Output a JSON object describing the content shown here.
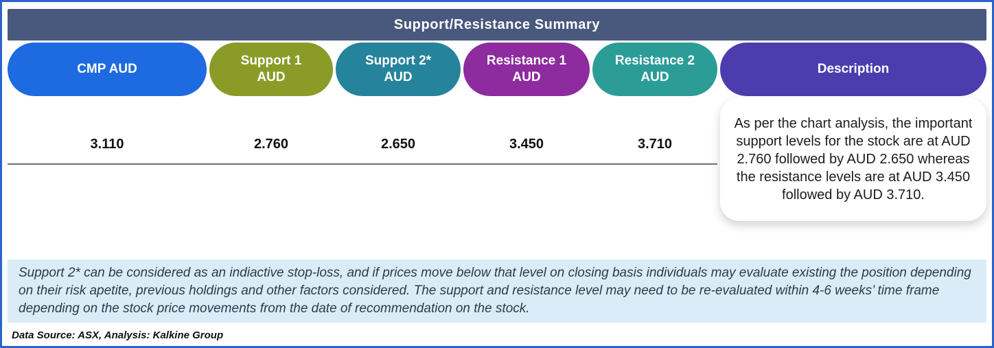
{
  "title": "Support/Resistance Summary",
  "columns": [
    {
      "label": "CMP AUD",
      "value": "3.110",
      "color": "#1e6ae0"
    },
    {
      "label": "Support 1\nAUD",
      "value": "2.760",
      "color": "#8a9c27"
    },
    {
      "label": "Support 2*\nAUD",
      "value": "2.650",
      "color": "#26839c"
    },
    {
      "label": "Resistance 1\nAUD",
      "value": "3.450",
      "color": "#8e2b9e"
    },
    {
      "label": "Resistance 2\nAUD",
      "value": "3.710",
      "color": "#2b9c96"
    }
  ],
  "description": {
    "header": "Description",
    "color": "#4c3cad",
    "text": "As per the chart analysis, the important support levels for the stock are at AUD 2.760 followed by AUD 2.650 whereas the resistance levels are at AUD 3.450 followed by AUD 3.710."
  },
  "note": "Support 2* can be considered as an indiactive stop-loss, and if prices move below that level on closing basis individuals may evaluate existing the position depending on their risk apetite, previous holdings and other factors considered. The support and resistance level may need to be re-evaluated within 4-6 weeks’ time frame depending on the stock price movements from  the date of recommendation on the stock.",
  "source": "Data Source: ASX, Analysis: Kalkine Group",
  "colors": {
    "title_bar": "#48597d",
    "note_bg": "#daecf8",
    "frame_border": "#2c63c8",
    "rule": "#6f6f6f"
  }
}
